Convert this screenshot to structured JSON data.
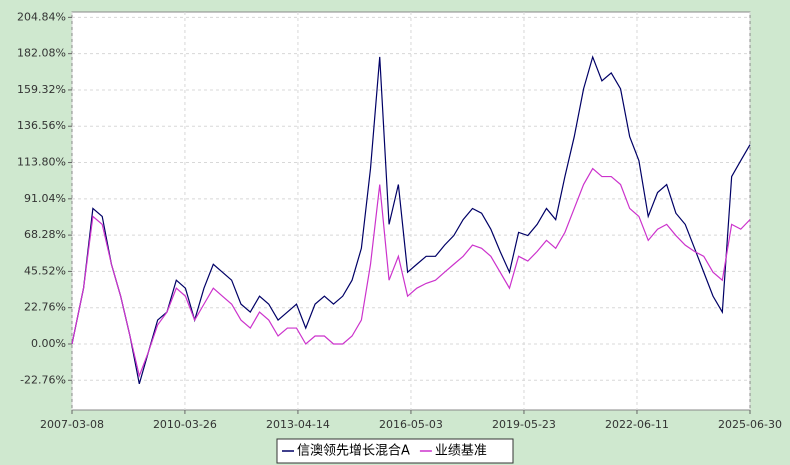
{
  "chart_data": {
    "type": "line",
    "x": [
      "2007-03-08",
      "2007-06-30",
      "2007-09-30",
      "2007-12-31",
      "2008-03-31",
      "2008-06-30",
      "2008-09-30",
      "2008-12-31",
      "2009-03-31",
      "2009-06-30",
      "2009-09-30",
      "2009-12-31",
      "2010-03-31",
      "2010-06-30",
      "2010-09-30",
      "2010-12-31",
      "2011-03-31",
      "2011-06-30",
      "2011-09-30",
      "2011-12-31",
      "2012-03-31",
      "2012-06-30",
      "2012-09-30",
      "2012-12-31",
      "2013-03-31",
      "2013-06-30",
      "2013-09-30",
      "2013-12-31",
      "2014-03-31",
      "2014-06-30",
      "2014-09-30",
      "2014-12-31",
      "2015-03-31",
      "2015-06-30",
      "2015-09-30",
      "2015-12-31",
      "2016-03-31",
      "2016-06-30",
      "2016-09-30",
      "2016-12-31",
      "2017-03-31",
      "2017-06-30",
      "2017-09-30",
      "2017-12-31",
      "2018-03-31",
      "2018-06-30",
      "2018-09-30",
      "2018-12-31",
      "2019-03-31",
      "2019-06-30",
      "2019-09-30",
      "2019-12-31",
      "2020-03-31",
      "2020-06-30",
      "2020-09-30",
      "2020-12-31",
      "2021-03-31",
      "2021-06-30",
      "2021-09-30",
      "2021-12-31",
      "2022-03-31",
      "2022-06-30",
      "2022-09-30",
      "2022-12-31",
      "2023-03-31",
      "2023-06-30",
      "2023-09-30",
      "2023-12-31",
      "2024-03-31",
      "2024-06-30",
      "2024-09-30",
      "2024-12-31",
      "2025-03-31",
      "2025-06-30"
    ],
    "series": [
      {
        "name": "信澳领先增长混合A",
        "color": "#000066",
        "values": [
          0,
          35,
          85,
          80,
          50,
          30,
          5,
          -25,
          -5,
          15,
          20,
          40,
          35,
          15,
          35,
          50,
          45,
          40,
          25,
          20,
          30,
          25,
          15,
          20,
          25,
          10,
          25,
          30,
          25,
          30,
          40,
          60,
          110,
          180,
          75,
          100,
          45,
          50,
          55,
          55,
          62,
          68,
          78,
          85,
          82,
          72,
          58,
          45,
          70,
          68,
          75,
          85,
          78,
          105,
          130,
          160,
          180,
          165,
          170,
          160,
          130,
          115,
          80,
          95,
          100,
          82,
          75,
          60,
          45,
          30,
          20,
          105,
          115,
          125
        ]
      },
      {
        "name": "业绩基准",
        "color": "#cc33cc",
        "values": [
          0,
          35,
          80,
          75,
          50,
          30,
          5,
          -20,
          -5,
          12,
          20,
          35,
          30,
          15,
          25,
          35,
          30,
          25,
          15,
          10,
          20,
          15,
          5,
          10,
          10,
          0,
          5,
          5,
          0,
          0,
          5,
          15,
          50,
          100,
          40,
          55,
          30,
          35,
          38,
          40,
          45,
          50,
          55,
          62,
          60,
          55,
          45,
          35,
          55,
          52,
          58,
          65,
          60,
          70,
          85,
          100,
          110,
          105,
          105,
          100,
          85,
          80,
          65,
          72,
          75,
          68,
          62,
          58,
          55,
          45,
          40,
          75,
          72,
          78
        ]
      }
    ],
    "xlim": [
      "2007-03-08",
      "2025-06-30"
    ],
    "xticks": [
      "2007-03-08",
      "2010-03-26",
      "2013-04-14",
      "2016-05-03",
      "2019-05-23",
      "2022-06-11",
      "2025-06-30"
    ],
    "ylim": [
      -41.4,
      208.2
    ],
    "yticks": [
      {
        "value": -22.76,
        "label": "-22.76%"
      },
      {
        "value": 0,
        "label": "0.00%"
      },
      {
        "value": 22.76,
        "label": "22.76%"
      },
      {
        "value": 45.52,
        "label": "45.52%"
      },
      {
        "value": 68.28,
        "label": "68.28%"
      },
      {
        "value": 91.04,
        "label": "91.04%"
      },
      {
        "value": 113.8,
        "label": "113.80%"
      },
      {
        "value": 136.56,
        "label": "136.56%"
      },
      {
        "value": 159.32,
        "label": "159.32%"
      },
      {
        "value": 182.08,
        "label": "182.08%"
      },
      {
        "value": 204.84,
        "label": "204.84%"
      }
    ],
    "grid": true,
    "legend": "bottom"
  }
}
